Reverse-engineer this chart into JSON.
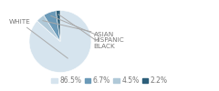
{
  "labels": [
    "WHITE",
    "ASIAN",
    "HISPANIC",
    "BLACK"
  ],
  "values": [
    86.5,
    4.5,
    6.7,
    2.2
  ],
  "colors": [
    "#d6e4ee",
    "#b0c9d8",
    "#6b9ab8",
    "#2d5f7a"
  ],
  "legend_labels": [
    "86.5%",
    "6.7%",
    "4.5%",
    "2.2%"
  ],
  "legend_colors": [
    "#d6e4ee",
    "#6b9ab8",
    "#b0c9d8",
    "#2d5f7a"
  ],
  "label_fontsize": 5.2,
  "legend_fontsize": 5.5,
  "text_color": "#777777",
  "line_color": "#aaaaaa"
}
